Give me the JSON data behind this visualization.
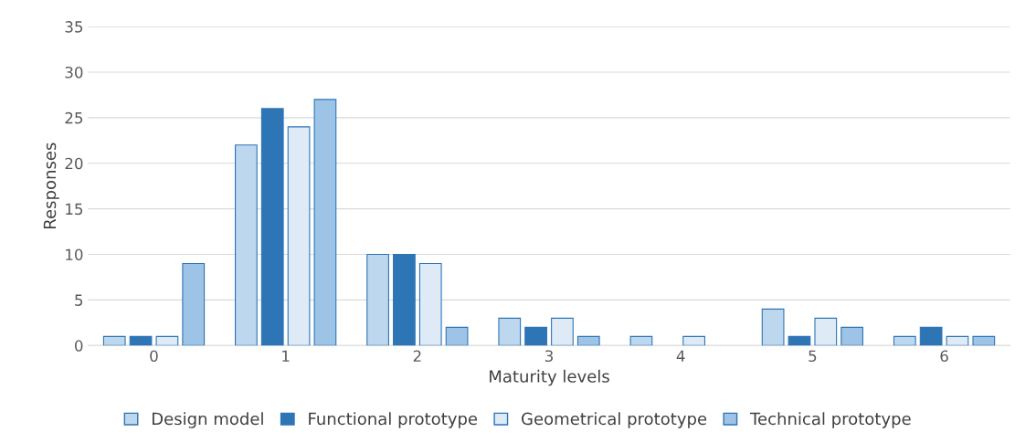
{
  "chart_data": {
    "type": "bar",
    "xlabel": "Maturity levels",
    "ylabel": "Responses",
    "categories": [
      "0",
      "1",
      "2",
      "3",
      "4",
      "5",
      "6"
    ],
    "series": [
      {
        "name": "Design model",
        "color": "#bdd7ee",
        "values": [
          1,
          22,
          10,
          3,
          1,
          4,
          1
        ]
      },
      {
        "name": "Functional prototype",
        "color": "#2e75b6",
        "values": [
          1,
          26,
          10,
          2,
          0,
          1,
          2
        ]
      },
      {
        "name": "Geometrical prototype",
        "color": "#deebf7",
        "values": [
          1,
          24,
          9,
          3,
          1,
          3,
          1
        ]
      },
      {
        "name": "Technical prototype",
        "color": "#9dc3e6",
        "values": [
          9,
          27,
          2,
          1,
          0,
          2,
          1
        ]
      }
    ],
    "ylim": [
      0,
      35
    ],
    "yticks": [
      0,
      5,
      10,
      15,
      20,
      25,
      30,
      35
    ],
    "grid": "y",
    "legend": "bottom"
  }
}
